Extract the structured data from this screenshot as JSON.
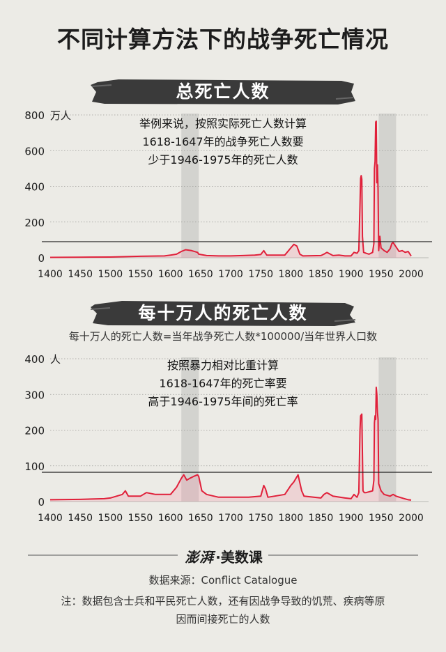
{
  "main_title": "不同计算方法下的战争死亡情况",
  "panels": [
    {
      "banner": "总死亡人数",
      "unit": "万人",
      "annotation": [
        "举例来说，按照实际死亡人数计算",
        "1618-1647年的战争死亡人数要",
        "少于1946-1975年的死亡人数"
      ]
    },
    {
      "banner": "每十万人的死亡人数",
      "formula": "每十万人的死亡人数=当年战争死亡人数*100000/当年世界人口数",
      "unit": "人",
      "annotation": [
        "按照暴力相对比重计算",
        "1618-1647年的死亡率要",
        "高于1946-1975年间的死亡率"
      ]
    }
  ],
  "logo": {
    "mark": "澎湃",
    "dot": "·",
    "name": "美数课"
  },
  "source": "数据来源：Conflict Catalogue",
  "note_lines": [
    "注：数据包含士兵和平民死亡人数，还有因战争导致的饥荒、疾病等原",
    "因而间接死亡的人数"
  ],
  "colors": {
    "line": "#e0203a",
    "light_line": "#f08aa0",
    "highlight_band": "#d3d3cf",
    "banner": "#3a3a3a"
  },
  "chart_data": [
    {
      "type": "line",
      "title": "总死亡人数",
      "ylabel": "万人",
      "xlim": [
        1400,
        2000
      ],
      "ylim": [
        0,
        800
      ],
      "x_ticks": [
        1400,
        1450,
        1500,
        1550,
        1600,
        1650,
        1700,
        1750,
        1800,
        1850,
        1900,
        1950,
        2000
      ],
      "y_ticks": [
        0,
        200,
        400,
        600,
        800
      ],
      "reference_line": 90,
      "highlight_ranges": [
        [
          1618,
          1647
        ],
        [
          1946,
          1975
        ]
      ],
      "grid": "dotted horizontal",
      "series": [
        {
          "x": [
            1400,
            1450,
            1500,
            1550,
            1590,
            1600,
            1610,
            1618,
            1625,
            1635,
            1645,
            1647,
            1660,
            1680,
            1700,
            1720,
            1740,
            1750,
            1755,
            1760,
            1790,
            1800,
            1805,
            1810,
            1815,
            1820,
            1850,
            1855,
            1860,
            1870,
            1880,
            1890,
            1900,
            1905,
            1910,
            1913,
            1915,
            1916,
            1917,
            1918,
            1919,
            1921,
            1925,
            1930,
            1936,
            1938,
            1939,
            1940,
            1941,
            1942,
            1943,
            1944,
            1945,
            1946,
            1948,
            1950,
            1955,
            1960,
            1965,
            1968,
            1970,
            1975,
            1980,
            1985,
            1990,
            1995,
            2000
          ],
          "y": [
            2,
            3,
            4,
            8,
            10,
            15,
            20,
            35,
            45,
            40,
            30,
            20,
            12,
            10,
            10,
            12,
            15,
            18,
            40,
            15,
            15,
            55,
            75,
            65,
            20,
            10,
            12,
            20,
            30,
            12,
            15,
            10,
            10,
            30,
            25,
            40,
            300,
            445,
            460,
            440,
            120,
            30,
            25,
            20,
            30,
            80,
            500,
            540,
            760,
            765,
            420,
            520,
            380,
            40,
            120,
            55,
            40,
            30,
            50,
            80,
            85,
            60,
            35,
            40,
            30,
            35,
            10
          ]
        }
      ]
    },
    {
      "type": "line",
      "title": "每十万人的死亡人数",
      "ylabel": "人",
      "xlim": [
        1400,
        2000
      ],
      "ylim": [
        0,
        400
      ],
      "x_ticks": [
        1400,
        1450,
        1500,
        1550,
        1600,
        1650,
        1700,
        1750,
        1800,
        1850,
        1900,
        1950,
        2000
      ],
      "y_ticks": [
        0,
        100,
        200,
        300,
        400
      ],
      "reference_line": 82,
      "highlight_ranges": [
        [
          1618,
          1647
        ],
        [
          1946,
          1975
        ]
      ],
      "grid": "dotted horizontal",
      "series": [
        {
          "x": [
            1400,
            1450,
            1490,
            1500,
            1520,
            1525,
            1530,
            1550,
            1560,
            1575,
            1590,
            1600,
            1610,
            1618,
            1622,
            1627,
            1632,
            1638,
            1645,
            1647,
            1652,
            1660,
            1680,
            1700,
            1730,
            1750,
            1755,
            1758,
            1762,
            1790,
            1800,
            1805,
            1812,
            1818,
            1822,
            1850,
            1855,
            1860,
            1870,
            1890,
            1900,
            1905,
            1910,
            1913,
            1915,
            1916,
            1918,
            1920,
            1922,
            1925,
            1936,
            1938,
            1939,
            1940,
            1941,
            1942,
            1943,
            1944,
            1945,
            1946,
            1950,
            1955,
            1965,
            1970,
            1975,
            1985,
            1995,
            2000
          ],
          "y": [
            5,
            6,
            8,
            10,
            20,
            30,
            15,
            15,
            25,
            20,
            20,
            20,
            40,
            65,
            75,
            60,
            65,
            70,
            75,
            70,
            30,
            20,
            12,
            12,
            12,
            15,
            45,
            35,
            12,
            20,
            45,
            55,
            75,
            30,
            15,
            10,
            20,
            25,
            15,
            10,
            8,
            20,
            12,
            25,
            200,
            240,
            245,
            30,
            25,
            25,
            30,
            60,
            220,
            240,
            230,
            320,
            300,
            250,
            230,
            50,
            30,
            20,
            15,
            20,
            15,
            10,
            5,
            4
          ]
        }
      ]
    }
  ]
}
